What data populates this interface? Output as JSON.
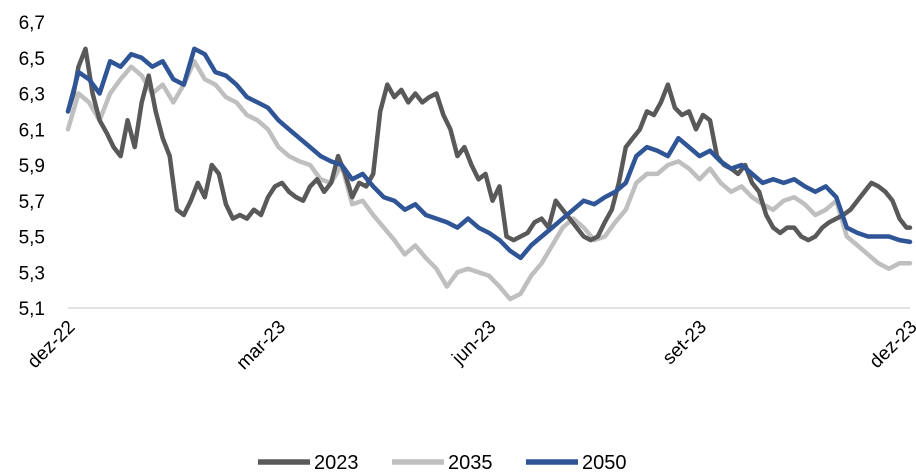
{
  "chart_data": {
    "type": "line",
    "title": "",
    "xlabel": "",
    "ylabel": "",
    "ylim": [
      5.1,
      6.7
    ],
    "y_ticks": [
      "5,1",
      "5,3",
      "5,5",
      "5,7",
      "5,9",
      "6,1",
      "6,3",
      "6,5",
      "6,7"
    ],
    "x_ticks": [
      "dez-22",
      "mar-23",
      "jun-23",
      "set-23",
      "dez-23"
    ],
    "grid": false,
    "legend_position": "bottom",
    "x_unit": "months since dez-22",
    "series": [
      {
        "name": "2023",
        "color": "#595959",
        "x": [
          0,
          0.08,
          0.15,
          0.25,
          0.35,
          0.45,
          0.55,
          0.65,
          0.75,
          0.85,
          0.95,
          1.05,
          1.15,
          1.25,
          1.35,
          1.45,
          1.55,
          1.65,
          1.75,
          1.85,
          1.95,
          2.05,
          2.15,
          2.25,
          2.35,
          2.45,
          2.55,
          2.65,
          2.75,
          2.85,
          2.95,
          3.05,
          3.15,
          3.25,
          3.35,
          3.45,
          3.55,
          3.65,
          3.75,
          3.85,
          3.95,
          4.05,
          4.15,
          4.25,
          4.35,
          4.45,
          4.55,
          4.65,
          4.75,
          4.85,
          4.95,
          5.05,
          5.15,
          5.25,
          5.35,
          5.45,
          5.55,
          5.65,
          5.75,
          5.85,
          5.95,
          6.05,
          6.15,
          6.25,
          6.35,
          6.45,
          6.55,
          6.65,
          6.75,
          6.85,
          6.95,
          7.05,
          7.15,
          7.25,
          7.35,
          7.45,
          7.55,
          7.65,
          7.75,
          7.85,
          7.95,
          8.05,
          8.15,
          8.25,
          8.35,
          8.45,
          8.55,
          8.65,
          8.75,
          8.85,
          8.95,
          9.05,
          9.15,
          9.25,
          9.35,
          9.45,
          9.55,
          9.65,
          9.75,
          9.85,
          9.95,
          10.05,
          10.15,
          10.25,
          10.35,
          10.45,
          10.55,
          10.65,
          10.75,
          10.85,
          10.95,
          11.05,
          11.15,
          11.25,
          11.35,
          11.45,
          11.55,
          11.65,
          11.75,
          11.85,
          11.95,
          12.0
        ],
        "values": [
          6.2,
          6.3,
          6.45,
          6.55,
          6.3,
          6.15,
          6.08,
          6.0,
          5.95,
          6.15,
          6.0,
          6.25,
          6.4,
          6.2,
          6.05,
          5.95,
          5.65,
          5.62,
          5.7,
          5.8,
          5.72,
          5.9,
          5.85,
          5.68,
          5.6,
          5.62,
          5.6,
          5.65,
          5.62,
          5.72,
          5.78,
          5.8,
          5.75,
          5.72,
          5.7,
          5.78,
          5.82,
          5.75,
          5.8,
          5.95,
          5.85,
          5.72,
          5.8,
          5.78,
          5.85,
          6.2,
          6.35,
          6.28,
          6.32,
          6.25,
          6.3,
          6.25,
          6.28,
          6.3,
          6.18,
          6.1,
          5.95,
          6.0,
          5.9,
          5.82,
          5.85,
          5.7,
          5.78,
          5.5,
          5.48,
          5.5,
          5.52,
          5.58,
          5.6,
          5.55,
          5.7,
          5.65,
          5.6,
          5.55,
          5.5,
          5.48,
          5.5,
          5.58,
          5.65,
          5.8,
          6.0,
          6.05,
          6.1,
          6.2,
          6.18,
          6.25,
          6.35,
          6.22,
          6.18,
          6.2,
          6.1,
          6.18,
          6.15,
          5.95,
          5.9,
          5.88,
          5.85,
          5.9,
          5.8,
          5.75,
          5.62,
          5.55,
          5.52,
          5.55,
          5.55,
          5.5,
          5.48,
          5.5,
          5.55,
          5.58,
          5.6,
          5.62,
          5.65,
          5.7,
          5.75,
          5.8,
          5.78,
          5.75,
          5.7,
          5.6,
          5.55,
          5.55
        ],
        "note_values_tail_adjusted": "",
        "label": "2023"
      },
      {
        "name": "2035",
        "color": "#bfbfbf",
        "x": [
          0,
          0.15,
          0.3,
          0.45,
          0.6,
          0.75,
          0.9,
          1.05,
          1.2,
          1.35,
          1.5,
          1.65,
          1.8,
          1.95,
          2.1,
          2.25,
          2.4,
          2.55,
          2.7,
          2.85,
          3.0,
          3.15,
          3.3,
          3.45,
          3.6,
          3.75,
          3.9,
          4.05,
          4.2,
          4.35,
          4.5,
          4.65,
          4.8,
          4.95,
          5.1,
          5.25,
          5.4,
          5.55,
          5.7,
          5.85,
          6.0,
          6.15,
          6.3,
          6.45,
          6.6,
          6.75,
          6.9,
          7.05,
          7.2,
          7.35,
          7.5,
          7.65,
          7.8,
          7.95,
          8.1,
          8.25,
          8.4,
          8.55,
          8.7,
          8.85,
          9.0,
          9.15,
          9.3,
          9.45,
          9.6,
          9.75,
          9.9,
          10.05,
          10.2,
          10.35,
          10.5,
          10.65,
          10.8,
          10.95,
          11.1,
          11.25,
          11.4,
          11.55,
          11.7,
          11.85,
          12.0
        ],
        "values": [
          6.1,
          6.3,
          6.25,
          6.15,
          6.3,
          6.38,
          6.45,
          6.4,
          6.3,
          6.35,
          6.25,
          6.35,
          6.48,
          6.38,
          6.35,
          6.28,
          6.25,
          6.18,
          6.15,
          6.1,
          6.0,
          5.95,
          5.92,
          5.9,
          5.82,
          5.8,
          5.9,
          5.68,
          5.7,
          5.62,
          5.55,
          5.48,
          5.4,
          5.45,
          5.38,
          5.32,
          5.22,
          5.3,
          5.32,
          5.3,
          5.28,
          5.22,
          5.15,
          5.18,
          5.28,
          5.35,
          5.45,
          5.55,
          5.6,
          5.55,
          5.48,
          5.5,
          5.58,
          5.65,
          5.8,
          5.85,
          5.85,
          5.9,
          5.92,
          5.88,
          5.82,
          5.88,
          5.8,
          5.75,
          5.78,
          5.72,
          5.68,
          5.65,
          5.7,
          5.72,
          5.68,
          5.62,
          5.65,
          5.7,
          5.5,
          5.45,
          5.4,
          5.35,
          5.32,
          5.35,
          5.35
        ]
      },
      {
        "name": "2050",
        "color": "#2f5597",
        "x": [
          0,
          0.15,
          0.3,
          0.45,
          0.6,
          0.75,
          0.9,
          1.05,
          1.2,
          1.35,
          1.5,
          1.65,
          1.8,
          1.95,
          2.1,
          2.25,
          2.4,
          2.55,
          2.7,
          2.85,
          3.0,
          3.15,
          3.3,
          3.45,
          3.6,
          3.75,
          3.9,
          4.05,
          4.2,
          4.35,
          4.5,
          4.65,
          4.8,
          4.95,
          5.1,
          5.25,
          5.4,
          5.55,
          5.7,
          5.85,
          6.0,
          6.15,
          6.3,
          6.45,
          6.6,
          6.75,
          6.9,
          7.05,
          7.2,
          7.35,
          7.5,
          7.65,
          7.8,
          7.95,
          8.1,
          8.25,
          8.4,
          8.55,
          8.7,
          8.85,
          9.0,
          9.15,
          9.3,
          9.45,
          9.6,
          9.75,
          9.9,
          10.05,
          10.2,
          10.35,
          10.5,
          10.65,
          10.8,
          10.95,
          11.1,
          11.25,
          11.4,
          11.55,
          11.7,
          11.85,
          12.0
        ],
        "values": [
          6.2,
          6.42,
          6.38,
          6.3,
          6.48,
          6.45,
          6.52,
          6.5,
          6.45,
          6.48,
          6.38,
          6.35,
          6.55,
          6.52,
          6.42,
          6.4,
          6.35,
          6.28,
          6.25,
          6.22,
          6.15,
          6.1,
          6.05,
          6.0,
          5.95,
          5.92,
          5.9,
          5.82,
          5.85,
          5.78,
          5.72,
          5.7,
          5.65,
          5.68,
          5.62,
          5.6,
          5.58,
          5.55,
          5.6,
          5.55,
          5.52,
          5.48,
          5.42,
          5.38,
          5.45,
          5.5,
          5.55,
          5.6,
          5.65,
          5.7,
          5.68,
          5.72,
          5.75,
          5.8,
          5.95,
          6.0,
          5.98,
          5.95,
          6.05,
          6.0,
          5.95,
          5.98,
          5.92,
          5.88,
          5.9,
          5.85,
          5.8,
          5.82,
          5.8,
          5.82,
          5.78,
          5.75,
          5.78,
          5.72,
          5.55,
          5.52,
          5.5,
          5.5,
          5.5,
          5.48,
          5.47
        ]
      }
    ]
  }
}
